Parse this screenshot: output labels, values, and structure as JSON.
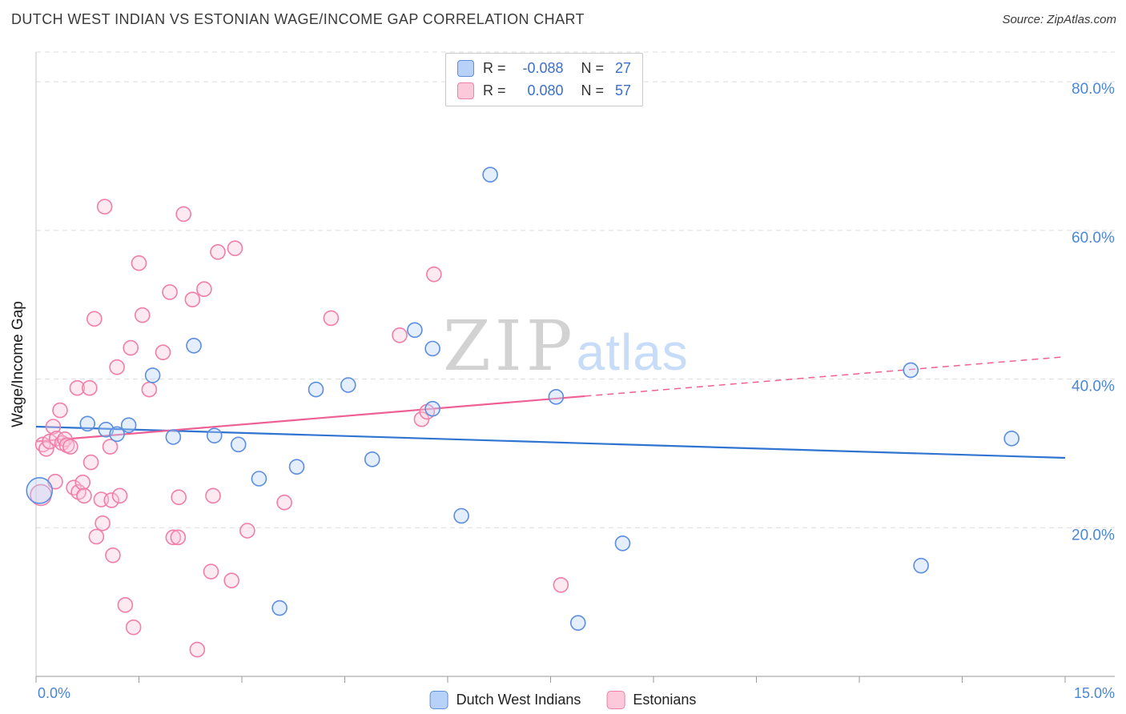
{
  "header": {
    "title": "DUTCH WEST INDIAN VS ESTONIAN WAGE/INCOME GAP CORRELATION CHART",
    "source": "Source: ZipAtlas.com"
  },
  "correlation_legend": {
    "rows": [
      {
        "r_label": "R =",
        "r_value": "-0.088",
        "n_label": "N =",
        "n_value": "27"
      },
      {
        "r_label": "R =",
        "r_value": "0.080",
        "n_label": "N =",
        "n_value": "57"
      }
    ]
  },
  "watermark": {
    "part1": "ZIP",
    "part2": "atlas"
  },
  "chart_data": {
    "type": "scatter",
    "title": "Dutch West Indian vs Estonian Wage/Income Gap Correlation",
    "ylabel": "Wage/Income Gap",
    "xlabel": "",
    "xlim": [
      0,
      15
    ],
    "ylim": [
      0,
      84
    ],
    "grid": "horizontal-dashed",
    "legend_position": "bottom-center",
    "x_tick_labels": [
      {
        "value": 0,
        "label": "0.0%"
      },
      {
        "value": 15,
        "label": "15.0%"
      }
    ],
    "y_ticks": [
      {
        "value": 20,
        "label": "20.0%"
      },
      {
        "value": 40,
        "label": "40.0%"
      },
      {
        "value": 60,
        "label": "60.0%"
      },
      {
        "value": 80,
        "label": "80.0%"
      }
    ],
    "colors": {
      "grid": "#dcdcdc",
      "axis_text": "#4a86d8",
      "spine": "#c4c4c4",
      "axis_line": "#9a9a9a",
      "ylabel_text": "#1c1c1c",
      "blue_line": "#2f74d0",
      "pink_line": "#ef5f93"
    },
    "series": [
      {
        "name": "Dutch West Indians",
        "r": -0.088,
        "n": 27,
        "stroke": "#5b8de0",
        "fill": "#b7d1f8",
        "points": [
          [
            0.05,
            25.0,
            16
          ],
          [
            0.75,
            34.0
          ],
          [
            1.02,
            33.2
          ],
          [
            1.35,
            33.8
          ],
          [
            1.18,
            32.6
          ],
          [
            1.7,
            40.5
          ],
          [
            2.0,
            32.2
          ],
          [
            2.3,
            44.5
          ],
          [
            2.6,
            32.4
          ],
          [
            2.95,
            31.2
          ],
          [
            3.25,
            26.6
          ],
          [
            3.55,
            9.2
          ],
          [
            3.8,
            28.2
          ],
          [
            4.08,
            38.6
          ],
          [
            4.55,
            39.2
          ],
          [
            4.9,
            29.2
          ],
          [
            5.52,
            46.6
          ],
          [
            5.78,
            44.1
          ],
          [
            5.78,
            36.0
          ],
          [
            6.2,
            21.6
          ],
          [
            6.62,
            67.5
          ],
          [
            7.58,
            37.6
          ],
          [
            7.9,
            7.2
          ],
          [
            8.55,
            17.9
          ],
          [
            12.75,
            41.2
          ],
          [
            12.9,
            14.9
          ],
          [
            14.22,
            32.0
          ]
        ]
      },
      {
        "name": "Estonians",
        "r": 0.08,
        "n": 57,
        "stroke": "#f07ea8",
        "fill": "#fbc9da",
        "points": [
          [
            0.07,
            24.4,
            13
          ],
          [
            0.1,
            31.2
          ],
          [
            0.15,
            30.6
          ],
          [
            0.2,
            31.6
          ],
          [
            0.25,
            33.6
          ],
          [
            0.28,
            26.2
          ],
          [
            0.3,
            32.0
          ],
          [
            0.35,
            35.8
          ],
          [
            0.38,
            31.4
          ],
          [
            0.42,
            31.9
          ],
          [
            0.45,
            31.1
          ],
          [
            0.5,
            30.9
          ],
          [
            0.55,
            25.4
          ],
          [
            0.62,
            24.8
          ],
          [
            0.68,
            26.1
          ],
          [
            0.7,
            24.3
          ],
          [
            0.6,
            38.8
          ],
          [
            0.78,
            38.8
          ],
          [
            0.8,
            28.8
          ],
          [
            0.85,
            48.1
          ],
          [
            0.88,
            18.8
          ],
          [
            0.95,
            23.8
          ],
          [
            0.97,
            20.6
          ],
          [
            1.0,
            63.2
          ],
          [
            1.08,
            30.9
          ],
          [
            1.1,
            23.7
          ],
          [
            1.12,
            16.3
          ],
          [
            1.18,
            41.6
          ],
          [
            1.22,
            24.3
          ],
          [
            1.3,
            9.6
          ],
          [
            1.38,
            44.2
          ],
          [
            1.42,
            6.6
          ],
          [
            1.5,
            55.6
          ],
          [
            1.55,
            48.6
          ],
          [
            1.65,
            38.6
          ],
          [
            1.85,
            43.6
          ],
          [
            1.95,
            51.7
          ],
          [
            2.0,
            18.7
          ],
          [
            2.07,
            18.7
          ],
          [
            2.08,
            24.1
          ],
          [
            2.15,
            62.2
          ],
          [
            2.28,
            50.7
          ],
          [
            2.35,
            3.6
          ],
          [
            2.45,
            52.1
          ],
          [
            2.55,
            14.1
          ],
          [
            2.58,
            24.3
          ],
          [
            2.65,
            57.1
          ],
          [
            2.85,
            12.9
          ],
          [
            2.9,
            57.6
          ],
          [
            3.08,
            19.6
          ],
          [
            3.62,
            23.4
          ],
          [
            4.3,
            48.2
          ],
          [
            5.3,
            45.9
          ],
          [
            5.62,
            34.6
          ],
          [
            5.7,
            35.6
          ],
          [
            5.8,
            54.1
          ],
          [
            7.65,
            12.3
          ]
        ]
      }
    ],
    "trend_lines": [
      {
        "series": "Dutch West Indians",
        "color": "blue_line",
        "x": [
          0,
          15
        ],
        "y": [
          33.6,
          29.4
        ],
        "dash": "solid",
        "width": 2.2
      },
      {
        "series": "Estonians",
        "color": "pink_line",
        "x": [
          0,
          8
        ],
        "y": [
          31.6,
          37.7
        ],
        "dash": "solid",
        "width": 2.2
      },
      {
        "series": "Estonians",
        "color": "pink_line",
        "x": [
          8,
          15
        ],
        "y": [
          37.7,
          43.0
        ],
        "dash": "dashed",
        "width": 1.5
      }
    ]
  }
}
